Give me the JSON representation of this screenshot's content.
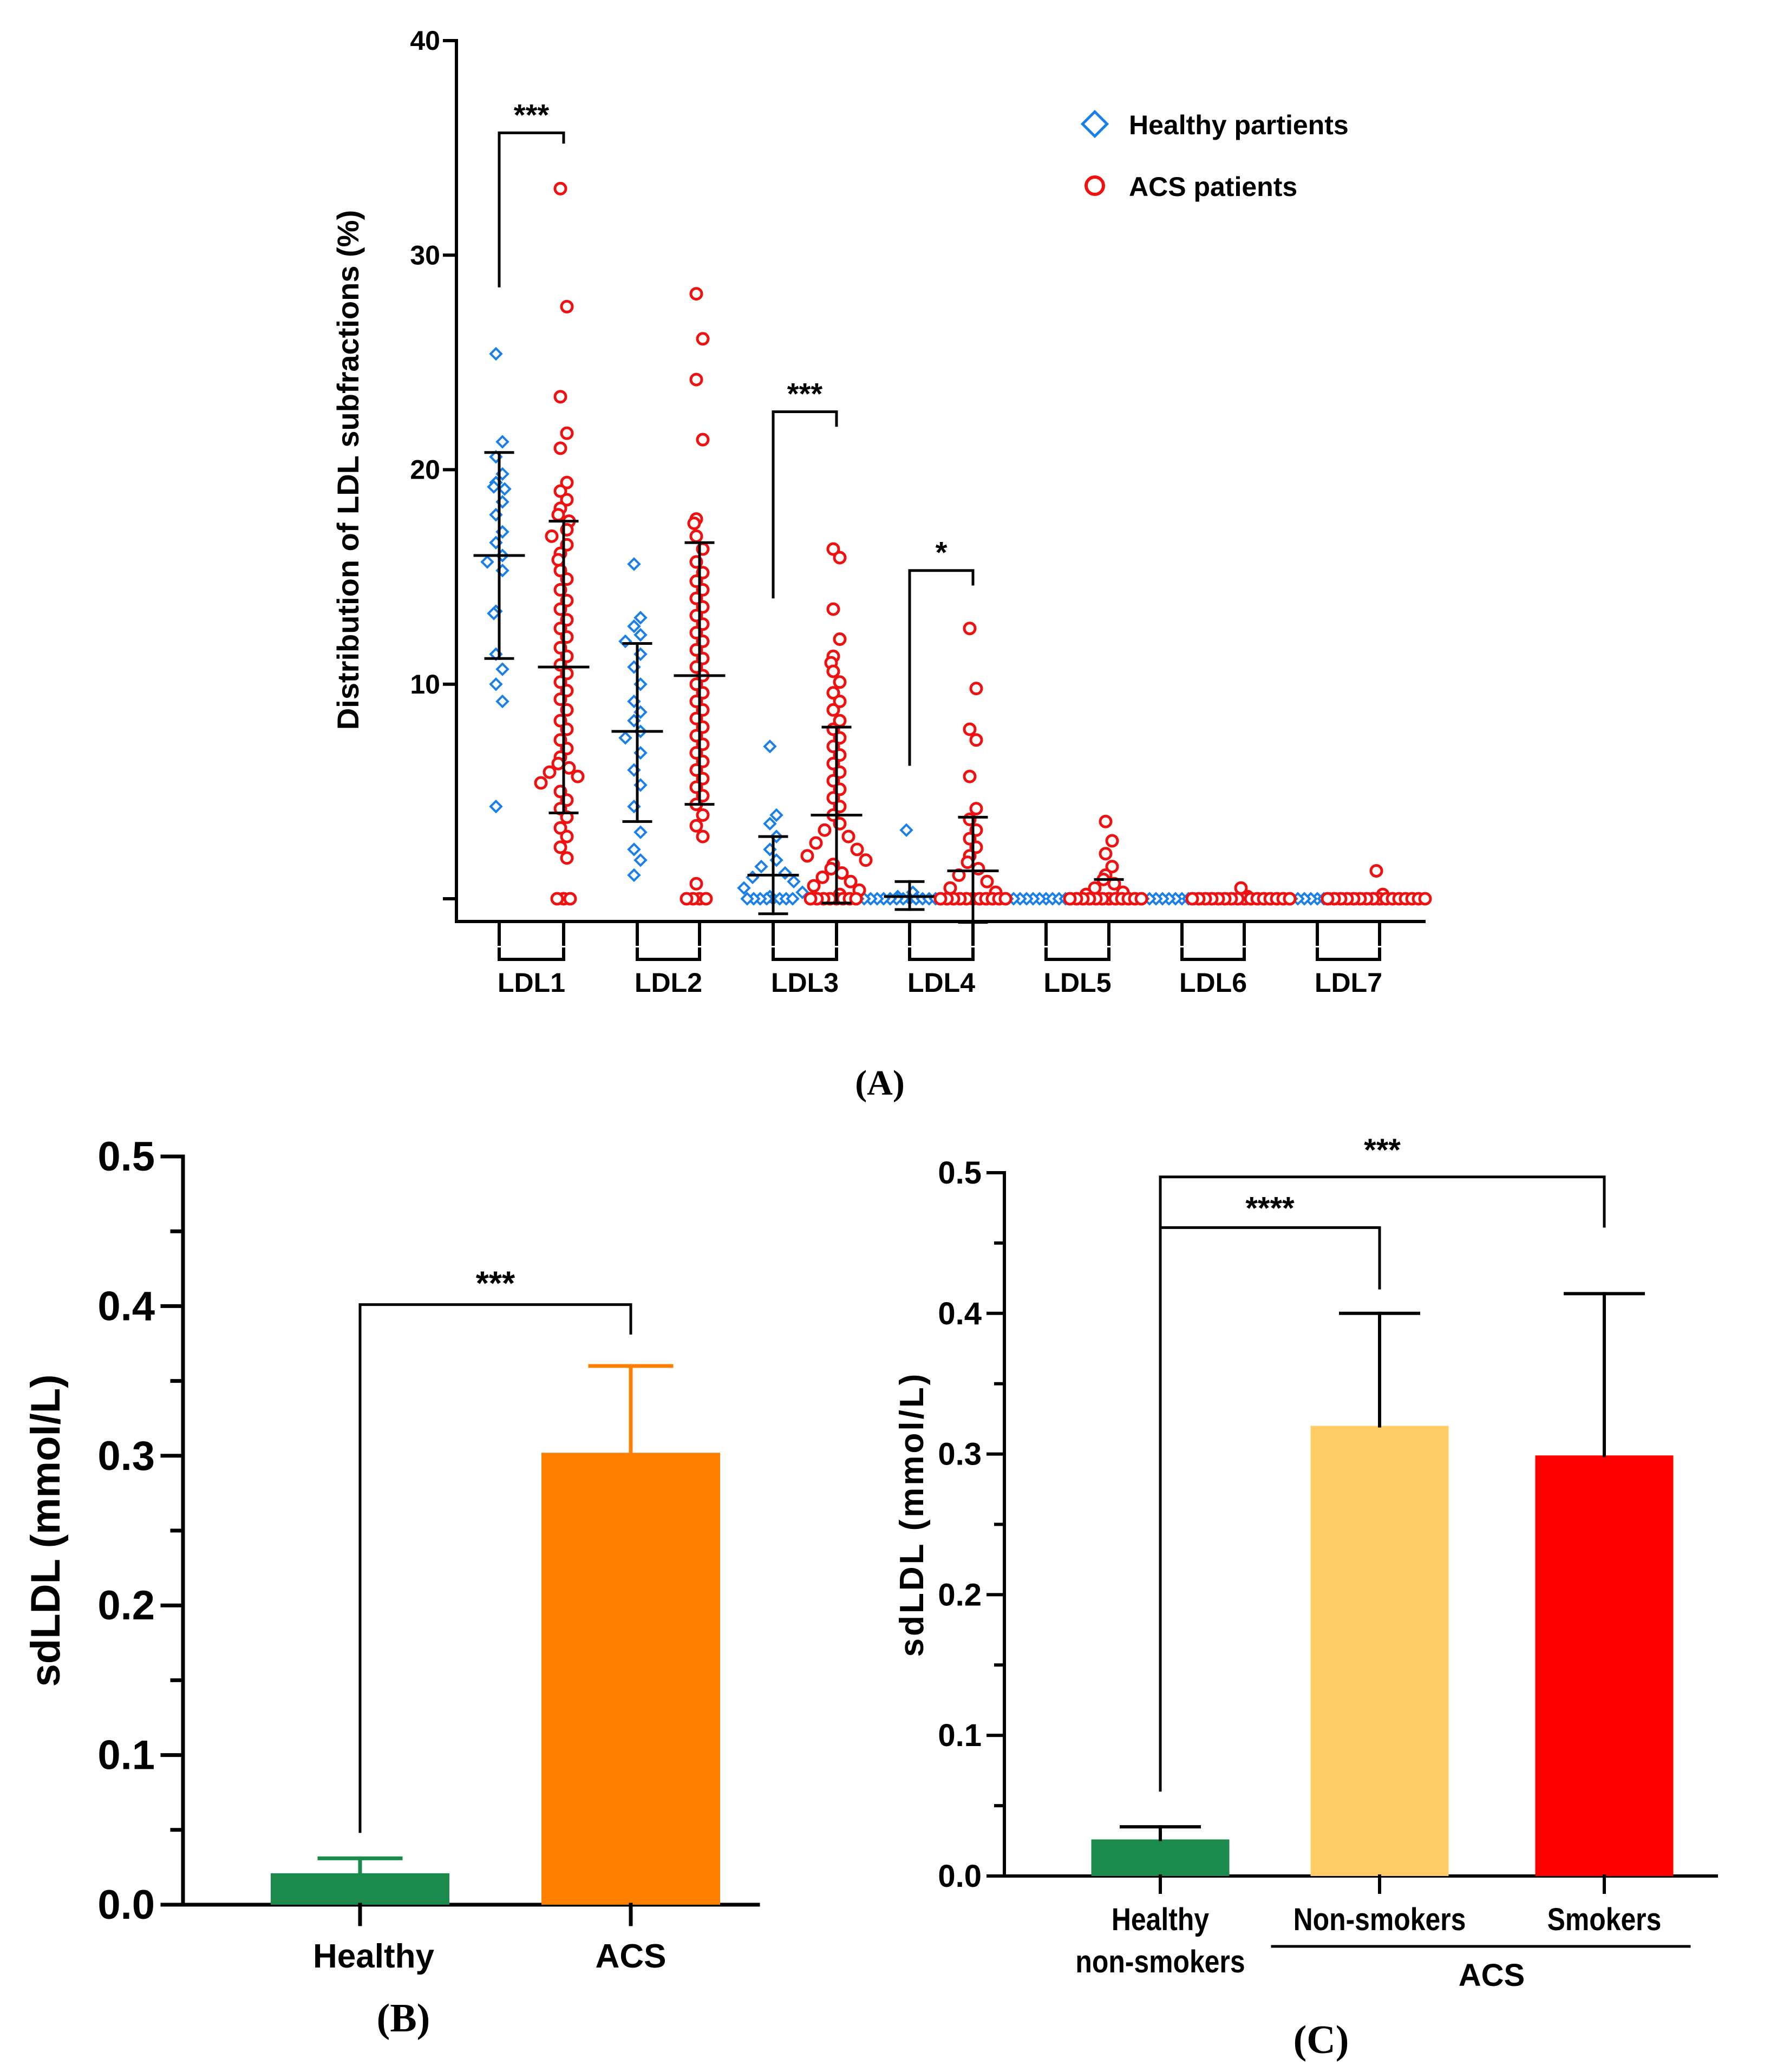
{
  "chart_data": [
    {
      "type": "scatter",
      "panel_label": "(A)",
      "title": "",
      "xlabel": "",
      "ylabel": "Distribution of LDL subfractions (%)",
      "ylim": [
        0,
        40
      ],
      "yticks": [
        "10",
        "20",
        "30",
        "40"
      ],
      "categories": [
        "LDL1",
        "LDL2",
        "LDL3",
        "LDL4",
        "LDL5",
        "LDL6",
        "LDL7"
      ],
      "legend_position": "top-right",
      "colors": {
        "healthy": "#1a7fe8",
        "acs": "#f01010"
      },
      "series": [
        {
          "name": "Healthy partients",
          "marker": "diamond",
          "groups": [
            {
              "mean": 16.0,
              "sd_low": 11.2,
              "sd_high": 20.8,
              "values": [
                25.4,
                21.3,
                20.6,
                19.8,
                19.4,
                19.2,
                19.1,
                18.5,
                17.9,
                17.1,
                16.6,
                16.0,
                15.7,
                15.3,
                13.4,
                13.3,
                11.4,
                10.7,
                10.0,
                9.2,
                4.3
              ]
            },
            {
              "mean": 7.8,
              "sd_low": 3.6,
              "sd_high": 11.9,
              "values": [
                15.6,
                13.1,
                12.7,
                12.3,
                12.0,
                11.4,
                10.8,
                10.0,
                9.2,
                8.7,
                8.3,
                7.8,
                7.5,
                6.8,
                6.0,
                5.3,
                4.3,
                3.1,
                2.3,
                1.8,
                1.1
              ]
            },
            {
              "mean": 1.1,
              "sd_low": -0.7,
              "sd_high": 2.9,
              "values": [
                7.1,
                3.9,
                3.5,
                2.9,
                2.3,
                1.8,
                1.5,
                1.2,
                1.0,
                0.8,
                0.5,
                0.3,
                0.1,
                0,
                0,
                0,
                0,
                0,
                0,
                0,
                0
              ]
            },
            {
              "mean": 0.1,
              "sd_low": -0.5,
              "sd_high": 0.8,
              "values": [
                3.2,
                0.3,
                0.1,
                0,
                0,
                0,
                0,
                0,
                0,
                0,
                0,
                0,
                0,
                0,
                0,
                0,
                0,
                0,
                0,
                0,
                0
              ]
            },
            {
              "mean": 0,
              "sd_low": 0,
              "sd_high": 0,
              "values": [
                0,
                0,
                0,
                0,
                0,
                0,
                0,
                0,
                0,
                0,
                0,
                0,
                0,
                0,
                0,
                0,
                0,
                0,
                0,
                0,
                0
              ]
            },
            {
              "mean": 0,
              "sd_low": 0,
              "sd_high": 0,
              "values": [
                0,
                0,
                0,
                0,
                0,
                0,
                0,
                0,
                0,
                0,
                0,
                0,
                0,
                0,
                0,
                0,
                0,
                0,
                0,
                0,
                0
              ]
            },
            {
              "mean": 0,
              "sd_low": 0,
              "sd_high": 0,
              "values": [
                0,
                0,
                0,
                0,
                0,
                0,
                0,
                0,
                0,
                0,
                0,
                0,
                0,
                0,
                0,
                0,
                0,
                0,
                0,
                0,
                0
              ]
            }
          ]
        },
        {
          "name": "ACS patients",
          "marker": "circle",
          "groups": [
            {
              "mean": 10.8,
              "sd_low": 4.0,
              "sd_high": 17.6,
              "values": [
                33.1,
                27.6,
                23.4,
                21.7,
                21.0,
                19.4,
                19.0,
                18.6,
                18.2,
                17.9,
                17.6,
                17.2,
                16.9,
                16.5,
                16.1,
                15.8,
                15.3,
                14.9,
                14.4,
                13.9,
                13.5,
                13.0,
                12.6,
                12.2,
                11.7,
                11.3,
                10.9,
                10.5,
                10.1,
                9.7,
                9.3,
                8.8,
                8.3,
                7.9,
                7.4,
                7.0,
                6.6,
                6.3,
                6.1,
                5.9,
                5.7,
                5.4,
                5.0,
                4.6,
                4.2,
                3.8,
                3.3,
                2.9,
                2.4,
                1.9,
                0,
                0,
                0
              ]
            },
            {
              "mean": 10.4,
              "sd_low": 4.4,
              "sd_high": 16.6,
              "values": [
                28.2,
                26.1,
                24.2,
                21.4,
                17.7,
                17.5,
                16.9,
                16.3,
                15.7,
                15.2,
                14.8,
                14.4,
                14.0,
                13.6,
                13.2,
                12.8,
                12.4,
                12.0,
                11.6,
                11.2,
                10.8,
                10.4,
                10.0,
                9.6,
                9.2,
                8.8,
                8.4,
                8.0,
                7.6,
                7.2,
                6.8,
                6.4,
                6.0,
                5.6,
                5.2,
                4.8,
                4.4,
                3.9,
                3.4,
                2.9,
                0.7,
                0,
                0,
                0,
                0
              ]
            },
            {
              "mean": 3.9,
              "sd_low": -0.2,
              "sd_high": 8.0,
              "values": [
                16.3,
                15.9,
                13.5,
                12.1,
                11.3,
                11.0,
                10.6,
                10.1,
                9.6,
                9.2,
                8.8,
                8.3,
                7.9,
                7.5,
                7.1,
                6.7,
                6.3,
                5.9,
                5.5,
                5.1,
                4.7,
                4.3,
                3.9,
                3.5,
                3.2,
                2.9,
                2.6,
                2.3,
                2.0,
                1.8,
                1.6,
                1.4,
                1.2,
                1.0,
                0.8,
                0.6,
                0.4,
                0.2,
                0,
                0,
                0,
                0,
                0,
                0,
                0,
                0
              ]
            },
            {
              "mean": 1.3,
              "sd_low": -1.1,
              "sd_high": 3.8,
              "values": [
                12.6,
                9.8,
                7.9,
                7.4,
                5.7,
                4.2,
                3.7,
                3.2,
                2.8,
                2.4,
                2.0,
                1.7,
                1.4,
                1.1,
                0.8,
                0.5,
                0.3,
                0,
                0,
                0,
                0,
                0,
                0,
                0,
                0,
                0,
                0,
                0
              ]
            },
            {
              "mean": 0.9,
              "sd_low": 0,
              "sd_high": 0,
              "values": [
                3.6,
                2.7,
                2.1,
                1.5,
                1.1,
                0.9,
                0.7,
                0.5,
                0.3,
                0.2,
                0,
                0,
                0,
                0,
                0,
                0,
                0,
                0,
                0,
                0,
                0,
                0
              ]
            },
            {
              "mean": 0,
              "sd_low": 0,
              "sd_high": 0,
              "values": [
                0.5,
                0.1,
                0,
                0,
                0,
                0,
                0,
                0,
                0,
                0,
                0,
                0,
                0,
                0,
                0,
                0,
                0,
                0
              ]
            },
            {
              "mean": 0,
              "sd_low": 0,
              "sd_high": 0,
              "values": [
                1.3,
                0.2,
                0,
                0,
                0,
                0,
                0,
                0,
                0,
                0,
                0,
                0,
                0,
                0,
                0,
                0,
                0,
                0
              ]
            }
          ]
        }
      ],
      "significance": [
        {
          "group": "LDL1",
          "label": "***"
        },
        {
          "group": "LDL3",
          "label": "***"
        },
        {
          "group": "LDL4",
          "label": "*"
        }
      ]
    },
    {
      "type": "bar",
      "panel_label": "(B)",
      "title": "",
      "xlabel": "",
      "ylabel": "sdLDL (mmol/L)",
      "ylim": [
        0,
        0.5
      ],
      "yticks": [
        "0.0",
        "0.1",
        "0.2",
        "0.3",
        "0.4",
        "0.5"
      ],
      "categories": [
        "Healthy",
        "ACS"
      ],
      "values": [
        0.021,
        0.302
      ],
      "error_high": [
        0.031,
        0.36
      ],
      "colors": [
        "#1b8a4c",
        "#ff8000"
      ],
      "significance": [
        {
          "from": "Healthy",
          "to": "ACS",
          "label": "***"
        }
      ]
    },
    {
      "type": "bar",
      "panel_label": "(C)",
      "title": "",
      "xlabel": "",
      "ylabel": "sdLDL (mmol/L)",
      "ylim": [
        0,
        0.5
      ],
      "yticks": [
        "0.0",
        "0.1",
        "0.2",
        "0.3",
        "0.4",
        "0.5"
      ],
      "categories": [
        "Healthy non-smokers",
        "Non-smokers",
        "Smokers"
      ],
      "category_lines": [
        [
          "Healthy",
          "non-smokers"
        ],
        [
          "Non-smokers"
        ],
        [
          "Smokers"
        ]
      ],
      "group_label": "ACS",
      "values": [
        0.026,
        0.32,
        0.299
      ],
      "error_high": [
        0.035,
        0.4,
        0.414
      ],
      "colors": [
        "#1b8a4c",
        "#ffcc66",
        "#ff0000"
      ],
      "significance": [
        {
          "from": "Healthy non-smokers",
          "to": "Non-smokers",
          "label": "****"
        },
        {
          "from": "Healthy non-smokers",
          "to": "Smokers",
          "label": "***"
        }
      ]
    }
  ]
}
